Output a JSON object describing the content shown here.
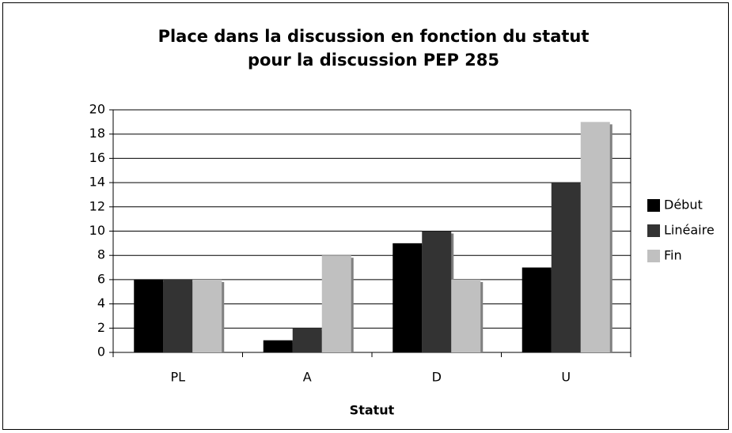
{
  "chart_data": {
    "type": "bar",
    "title": [
      "Place dans la discussion en fonction du statut",
      "pour la discussion PEP 285"
    ],
    "x_label": "Statut",
    "categories": [
      "PL",
      "A",
      "D",
      "U"
    ],
    "series": [
      {
        "name": "Début",
        "color": "#000000",
        "values": [
          6,
          1,
          9,
          7
        ]
      },
      {
        "name": "Linéaire",
        "color": "#333333",
        "values": [
          6,
          2,
          10,
          14
        ]
      },
      {
        "name": "Fin",
        "color": "#c0c0c0",
        "values": [
          6,
          8,
          6,
          19
        ]
      }
    ],
    "ylim": [
      0,
      20
    ],
    "yticks": [
      0,
      2,
      4,
      6,
      8,
      10,
      12,
      14,
      16,
      18,
      20
    ],
    "grid": true,
    "legend": "right"
  }
}
